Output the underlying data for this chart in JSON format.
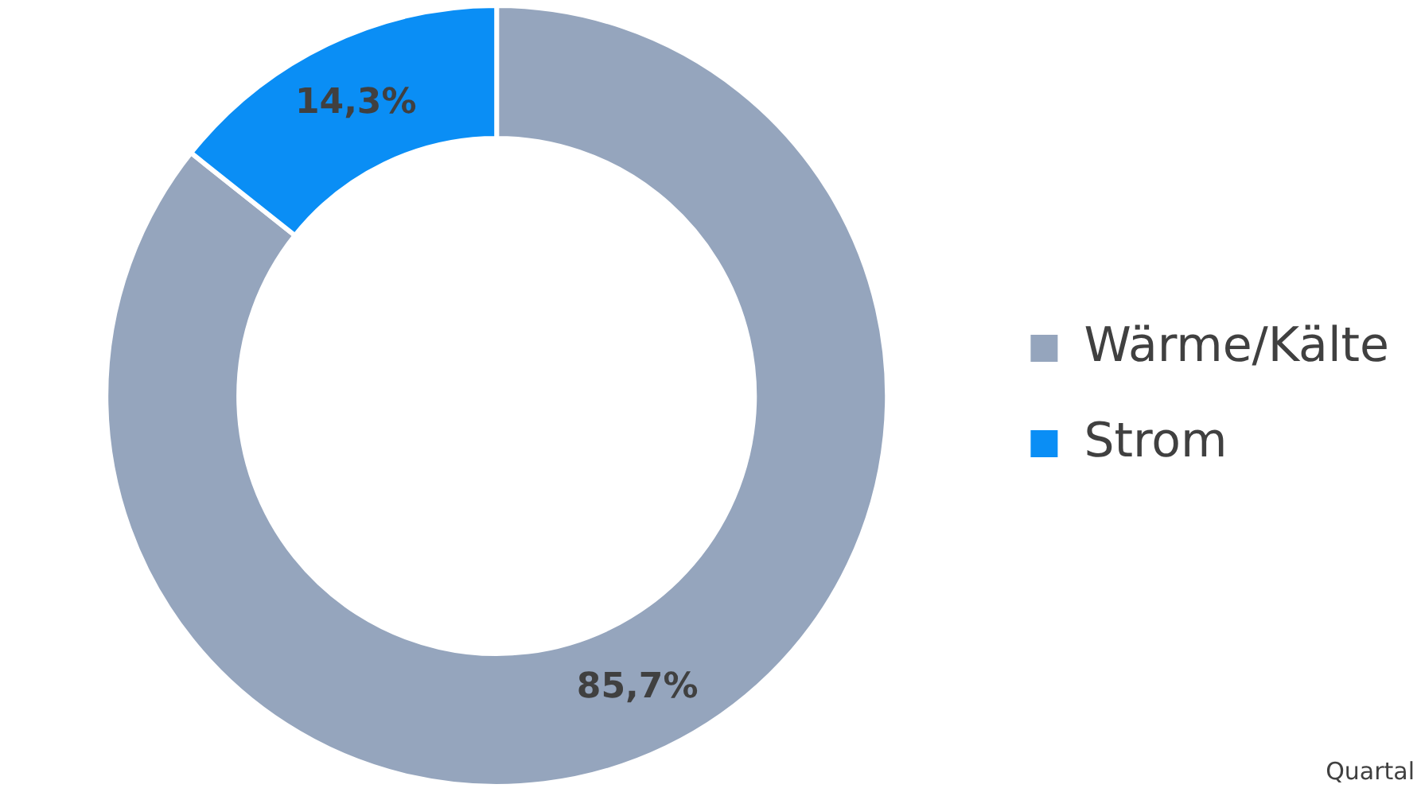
{
  "chart_data": {
    "type": "donut",
    "categories": [
      "Wärme/Kälte",
      "Strom"
    ],
    "values": [
      85.7,
      14.3
    ],
    "value_labels": [
      "85,7%",
      "14,3%"
    ],
    "colors": [
      "#95a5bd",
      "#0a8ef5"
    ],
    "legend": "right",
    "annotations": [
      "Quartal"
    ]
  }
}
